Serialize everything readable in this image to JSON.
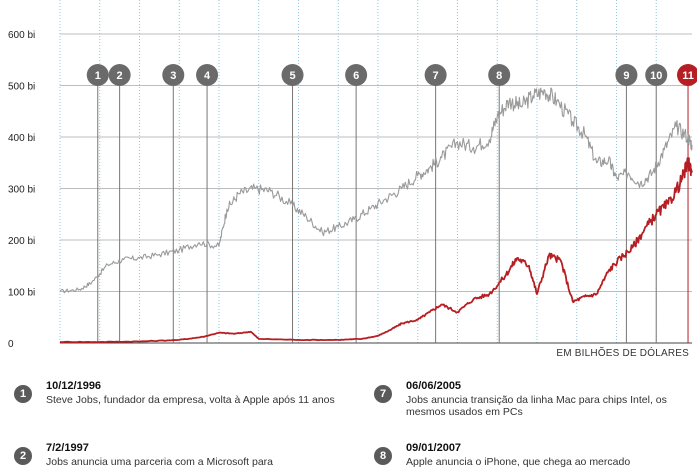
{
  "chart_data": {
    "type": "line",
    "title": "",
    "xlabel": "",
    "ylabel": "",
    "unit_label": "EM BILHÕES DE DÓLARES",
    "y_ticks": [
      {
        "value": 0,
        "label": "0"
      },
      {
        "value": 100,
        "label": "100 bi"
      },
      {
        "value": 200,
        "label": "200 bi"
      },
      {
        "value": 300,
        "label": "300 bi"
      },
      {
        "value": 400,
        "label": "400 bi"
      },
      {
        "value": 500,
        "label": "500 bi"
      },
      {
        "value": 600,
        "label": "600 bi"
      }
    ],
    "ylim": [
      0,
      600
    ],
    "xlim": [
      1996.0,
      2011.9
    ],
    "grid": true,
    "series": [
      {
        "color": "#9a9a9a",
        "x": [
          1996.0,
          1996.5,
          1996.8,
          1997.2,
          1997.6,
          1998.0,
          1998.5,
          1999.0,
          1999.5,
          2000.0,
          2000.2,
          2000.5,
          2000.9,
          2001.3,
          2001.8,
          2002.2,
          2002.6,
          2003.0,
          2003.4,
          2003.8,
          2004.2,
          2004.6,
          2005.0,
          2005.3,
          2005.6,
          2006.0,
          2006.4,
          2006.8,
          2007.0,
          2007.3,
          2007.6,
          2007.9,
          2008.2,
          2008.5,
          2008.9,
          2009.2,
          2009.5,
          2009.8,
          2010.0,
          2010.3,
          2010.6,
          2010.9,
          2011.2,
          2011.5,
          2011.8,
          2011.9
        ],
        "values": [
          100,
          104,
          118,
          152,
          162,
          165,
          172,
          180,
          195,
          188,
          260,
          290,
          300,
          295,
          270,
          245,
          215,
          225,
          240,
          260,
          280,
          300,
          325,
          340,
          360,
          390,
          380,
          395,
          440,
          470,
          460,
          480,
          490,
          470,
          430,
          405,
          350,
          355,
          320,
          330,
          310,
          330,
          375,
          420,
          400,
          385
        ]
      },
      {
        "color": "#b51e23",
        "x": [
          1996.0,
          1997.0,
          1998.0,
          1999.0,
          1999.6,
          2000.0,
          2000.4,
          2000.8,
          2001.0,
          2002.0,
          2003.0,
          2003.6,
          2004.0,
          2004.3,
          2004.6,
          2005.0,
          2005.3,
          2005.6,
          2006.0,
          2006.4,
          2006.8,
          2007.2,
          2007.5,
          2007.8,
          2008.0,
          2008.3,
          2008.6,
          2008.9,
          2009.2,
          2009.5,
          2009.8,
          2010.1,
          2010.4,
          2010.7,
          2011.0,
          2011.3,
          2011.6,
          2011.8,
          2011.9
        ],
        "values": [
          2,
          2,
          3,
          6,
          12,
          20,
          18,
          22,
          8,
          6,
          6,
          8,
          14,
          25,
          38,
          45,
          60,
          75,
          60,
          85,
          95,
          130,
          165,
          150,
          95,
          170,
          160,
          80,
          90,
          95,
          140,
          165,
          185,
          220,
          250,
          270,
          310,
          350,
          335
        ]
      }
    ],
    "events": [
      {
        "n": "1",
        "x": 1996.95
      },
      {
        "n": "2",
        "x": 1997.5
      },
      {
        "n": "3",
        "x": 1998.85
      },
      {
        "n": "4",
        "x": 1999.7
      },
      {
        "n": "5",
        "x": 2001.85
      },
      {
        "n": "6",
        "x": 2003.45
      },
      {
        "n": "7",
        "x": 2005.45
      },
      {
        "n": "8",
        "x": 2007.05
      },
      {
        "n": "9",
        "x": 2010.25
      },
      {
        "n": "10",
        "x": 2011.0
      },
      {
        "n": "11",
        "x": 2011.8,
        "highlight": true
      }
    ]
  },
  "notes": [
    {
      "n": "1",
      "date": "10/12/1996",
      "text": "Steve Jobs, fundador da empresa, volta à Apple após 11 anos"
    },
    {
      "n": "7",
      "date": "06/06/2005",
      "text": "Jobs anuncia transição da linha Mac para chips Intel, os mesmos usados em PCs"
    },
    {
      "n": "2",
      "date": "7/2/1997",
      "text": "Jobs anuncia uma parceria com a Microsoft para"
    },
    {
      "n": "8",
      "date": "09/01/2007",
      "text": "Apple anuncia o iPhone, que chega ao mercado"
    }
  ]
}
